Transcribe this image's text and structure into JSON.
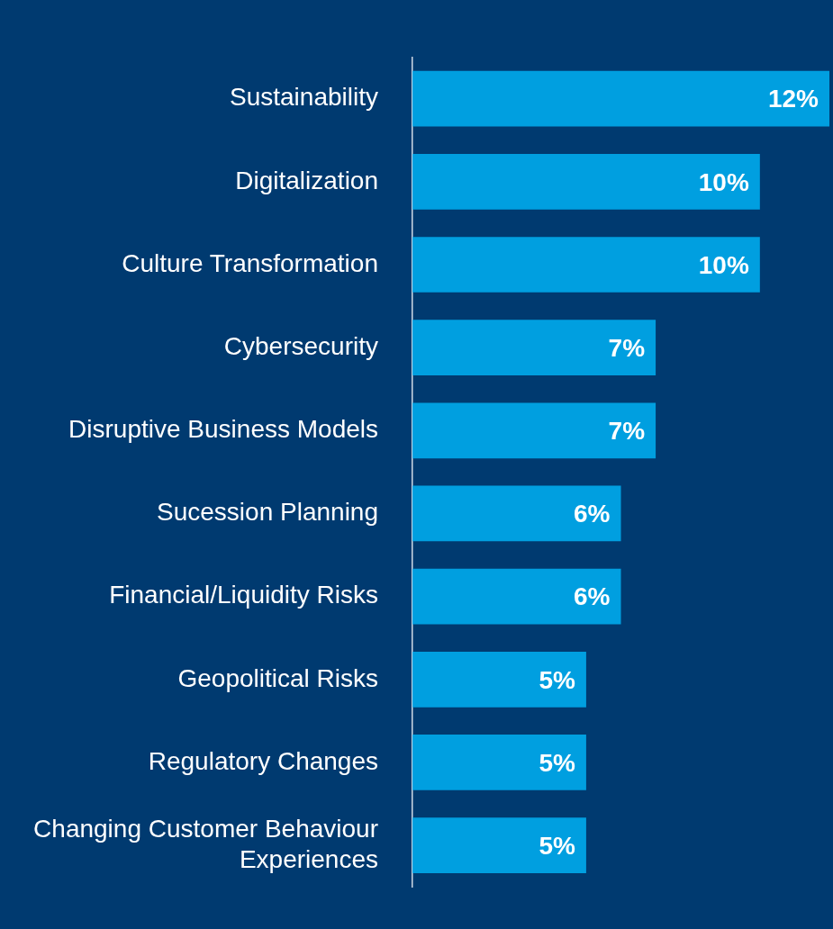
{
  "chart_data": {
    "type": "bar",
    "orientation": "horizontal",
    "categories": [
      "Sustainability",
      "Digitalization",
      "Culture Transformation",
      "Cybersecurity",
      "Disruptive Business Models",
      "Sucession Planning",
      "Financial/Liquidity Risks",
      "Geopolitical Risks",
      "Regulatory Changes",
      "Changing Customer Behaviour Experiences"
    ],
    "values": [
      12,
      10,
      10,
      7,
      7,
      6,
      6,
      5,
      5,
      5
    ],
    "value_labels": [
      "12%",
      "10%",
      "10%",
      "7%",
      "7%",
      "6%",
      "6%",
      "5%",
      "5%",
      "5%"
    ],
    "color": "#009fe0",
    "xlim": [
      0,
      12
    ],
    "tick_labels": "y",
    "grid": false,
    "legend": false
  }
}
